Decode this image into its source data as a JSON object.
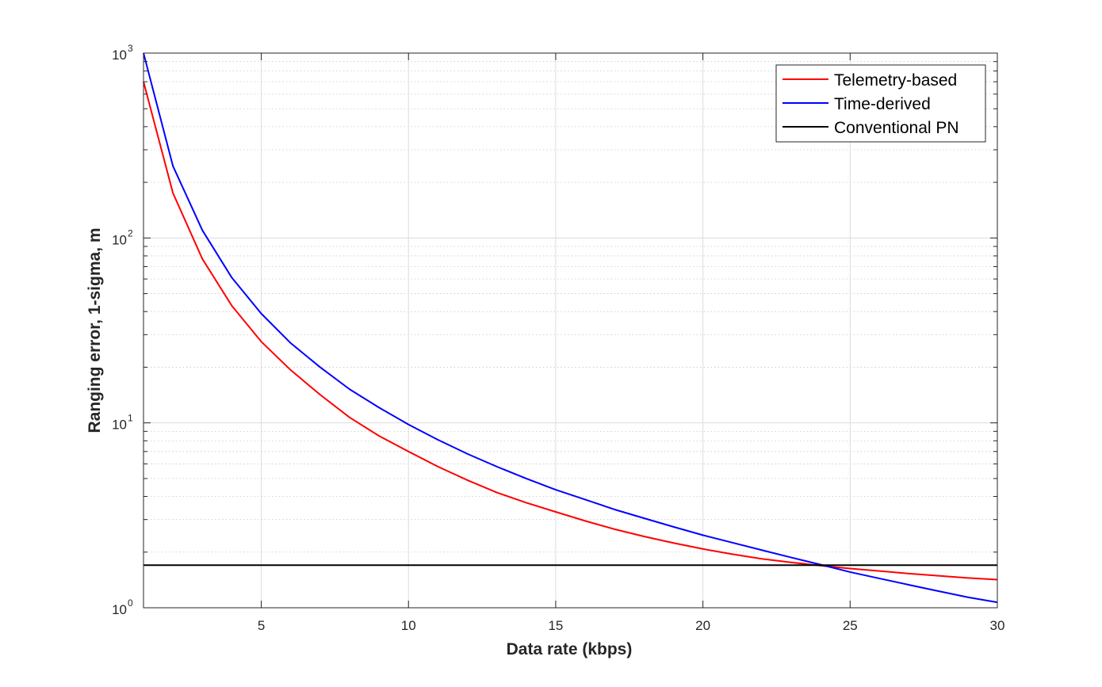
{
  "chart_data": {
    "type": "line",
    "xlabel": "Data rate (kbps)",
    "ylabel": "Ranging error, 1-sigma, m",
    "xlim": [
      1,
      30
    ],
    "ylim": [
      1,
      1000
    ],
    "yscale": "log",
    "grid": true,
    "minor_grid_y": true,
    "legend_position": "top-right",
    "x_ticks": [
      5,
      10,
      15,
      20,
      25,
      30
    ],
    "x_tick_labels": [
      "5",
      "10",
      "15",
      "20",
      "25",
      "30"
    ],
    "y_ticks": [
      {
        "value": 1,
        "base": "10",
        "exp": "0"
      },
      {
        "value": 10,
        "base": "10",
        "exp": "1"
      },
      {
        "value": 100,
        "base": "10",
        "exp": "2"
      },
      {
        "value": 1000,
        "base": "10",
        "exp": "3"
      }
    ],
    "x": [
      1,
      2,
      3,
      4,
      5,
      6,
      7,
      8,
      9,
      10,
      11,
      12,
      13,
      14,
      15,
      16,
      17,
      18,
      19,
      20,
      21,
      22,
      23,
      24,
      25,
      26,
      27,
      28,
      29,
      30
    ],
    "series": [
      {
        "name": "Telemetry-based",
        "color": "#ff0000",
        "values": [
          700,
          175,
          77,
          43,
          27.5,
          19.3,
          14.2,
          10.7,
          8.5,
          7.0,
          5.8,
          4.9,
          4.2,
          3.7,
          3.3,
          2.95,
          2.66,
          2.43,
          2.24,
          2.08,
          1.95,
          1.84,
          1.76,
          1.69,
          1.63,
          1.58,
          1.53,
          1.49,
          1.45,
          1.42
        ]
      },
      {
        "name": "Time-derived",
        "color": "#0000ff",
        "values": [
          1000,
          245,
          110,
          61,
          39,
          27,
          20,
          15.2,
          12.1,
          9.8,
          8.1,
          6.8,
          5.8,
          5.0,
          4.35,
          3.85,
          3.4,
          3.05,
          2.74,
          2.47,
          2.25,
          2.05,
          1.87,
          1.71,
          1.56,
          1.44,
          1.33,
          1.23,
          1.14,
          1.07
        ]
      },
      {
        "name": "Conventional PN",
        "color": "#000000",
        "values": [
          1.7,
          1.7,
          1.7,
          1.7,
          1.7,
          1.7,
          1.7,
          1.7,
          1.7,
          1.7,
          1.7,
          1.7,
          1.7,
          1.7,
          1.7,
          1.7,
          1.7,
          1.7,
          1.7,
          1.7,
          1.7,
          1.7,
          1.7,
          1.7,
          1.7,
          1.7,
          1.7,
          1.7,
          1.7,
          1.7
        ]
      }
    ]
  }
}
